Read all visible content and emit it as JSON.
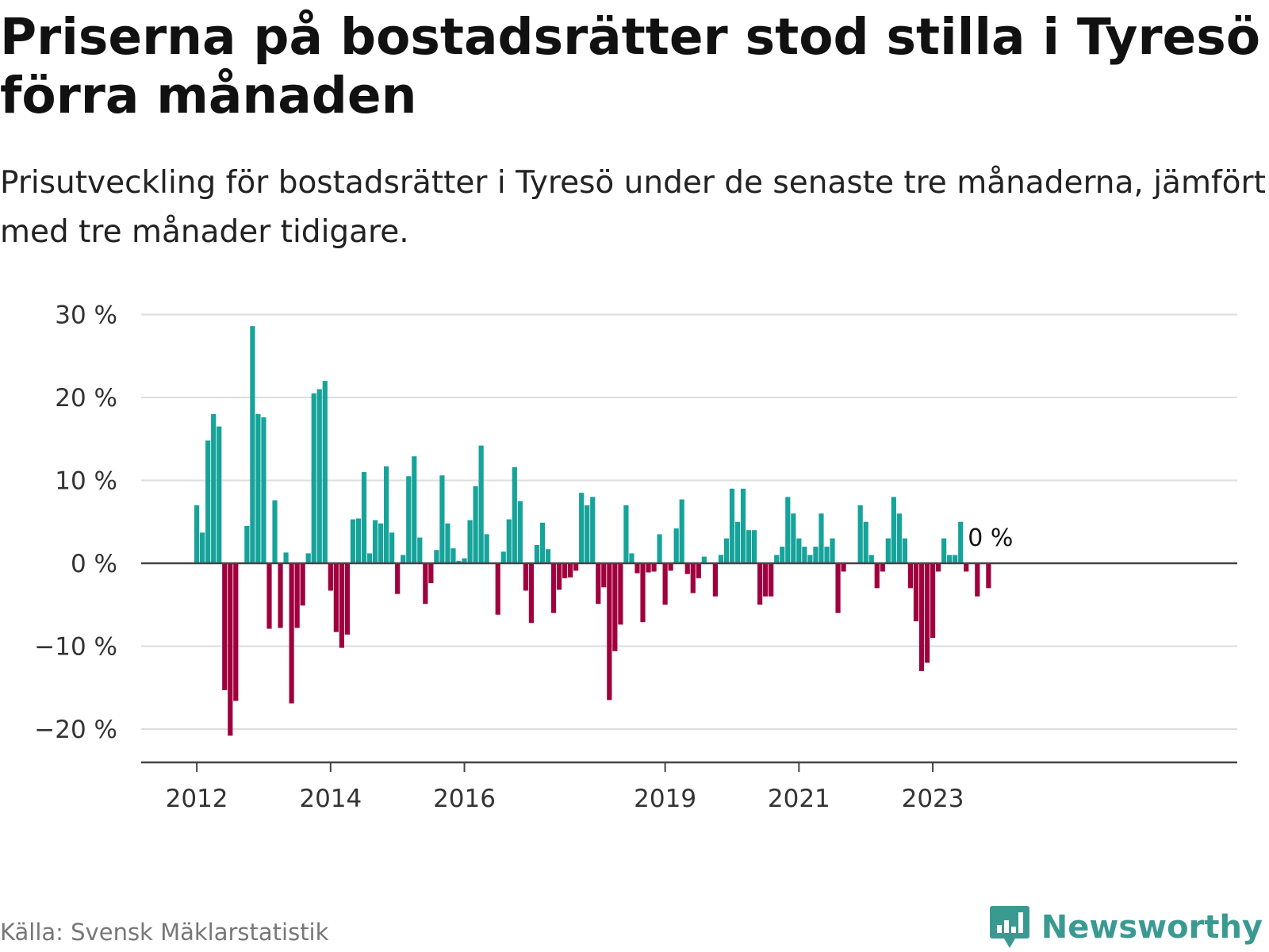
{
  "header": {
    "title": "Priserna på bostadsrätter stod stilla i Tyresö förra månaden",
    "subtitle": "Prisutveckling för bostadsrätter i Tyresö under de senaste tre månaderna, jämfört med tre månader tidigare."
  },
  "footer": {
    "source": "Källa: Svensk Mäklarstatistik",
    "brand": "Newsworthy"
  },
  "colors": {
    "positive": "#16a39a",
    "negative": "#a0003d",
    "gridline": "#dddddd",
    "axis": "#444444",
    "brand": "#3a9a92"
  },
  "chart_data": {
    "type": "bar",
    "title": "Priserna på bostadsrätter stod stilla i Tyresö förra månaden",
    "xlabel": "",
    "ylabel": "",
    "ylim": [
      -23,
      30
    ],
    "yticks": [
      30,
      20,
      10,
      0,
      -10,
      -20
    ],
    "ytick_labels": [
      "30 %",
      "20 %",
      "10 %",
      "0 %",
      "−10 %",
      "−20 %"
    ],
    "start": "2012-01",
    "xticks": [
      {
        "label": "2012",
        "index": 0
      },
      {
        "label": "2014",
        "index": 24
      },
      {
        "label": "2016",
        "index": 48
      },
      {
        "label": "2019",
        "index": 84
      },
      {
        "label": "2021",
        "index": 108
      },
      {
        "label": "2023",
        "index": 132
      }
    ],
    "values": [
      7,
      3.7,
      14.8,
      18,
      16.5,
      -15.3,
      -20.8,
      -16.6,
      null,
      4.5,
      28.6,
      18,
      17.6,
      -7.9,
      7.6,
      -7.8,
      1.3,
      -16.9,
      -7.8,
      -5.1,
      1.2,
      20.5,
      21,
      22,
      -3.3,
      -8.3,
      -10.2,
      -8.6,
      5.3,
      5.4,
      11,
      1.2,
      5.2,
      4.8,
      11.7,
      3.7,
      -3.7,
      1,
      10.5,
      12.9,
      3.1,
      -4.9,
      -2.4,
      1.6,
      10.6,
      4.8,
      1.8,
      0.3,
      0.6,
      5.2,
      9.3,
      14.2,
      3.5,
      null,
      -6.2,
      1.4,
      5.3,
      11.6,
      7.5,
      -3.3,
      -7.2,
      2.2,
      4.9,
      1.7,
      -6,
      -3.2,
      -1.8,
      -1.7,
      -0.9,
      8.5,
      7,
      8,
      -4.9,
      -2.9,
      -16.5,
      -10.6,
      -7.4,
      7,
      1.2,
      -1.2,
      -7.1,
      -1.1,
      -1,
      3.5,
      -5,
      -0.9,
      4.2,
      7.7,
      -1.3,
      -3.6,
      -1.8,
      0.8,
      null,
      -4,
      1,
      3,
      9,
      5,
      9,
      4,
      4,
      -5,
      -4,
      -4,
      1,
      2,
      8,
      6,
      3,
      2,
      1,
      2,
      6,
      2,
      3,
      -6,
      -1,
      null,
      null,
      7,
      5,
      1,
      -3,
      -1,
      3,
      8,
      6,
      3,
      -3,
      -7,
      -13,
      -12,
      -9,
      -1,
      3,
      1,
      1,
      5,
      -1,
      null,
      -4,
      null,
      -3,
      0
    ],
    "last_value_label": "0 %"
  }
}
